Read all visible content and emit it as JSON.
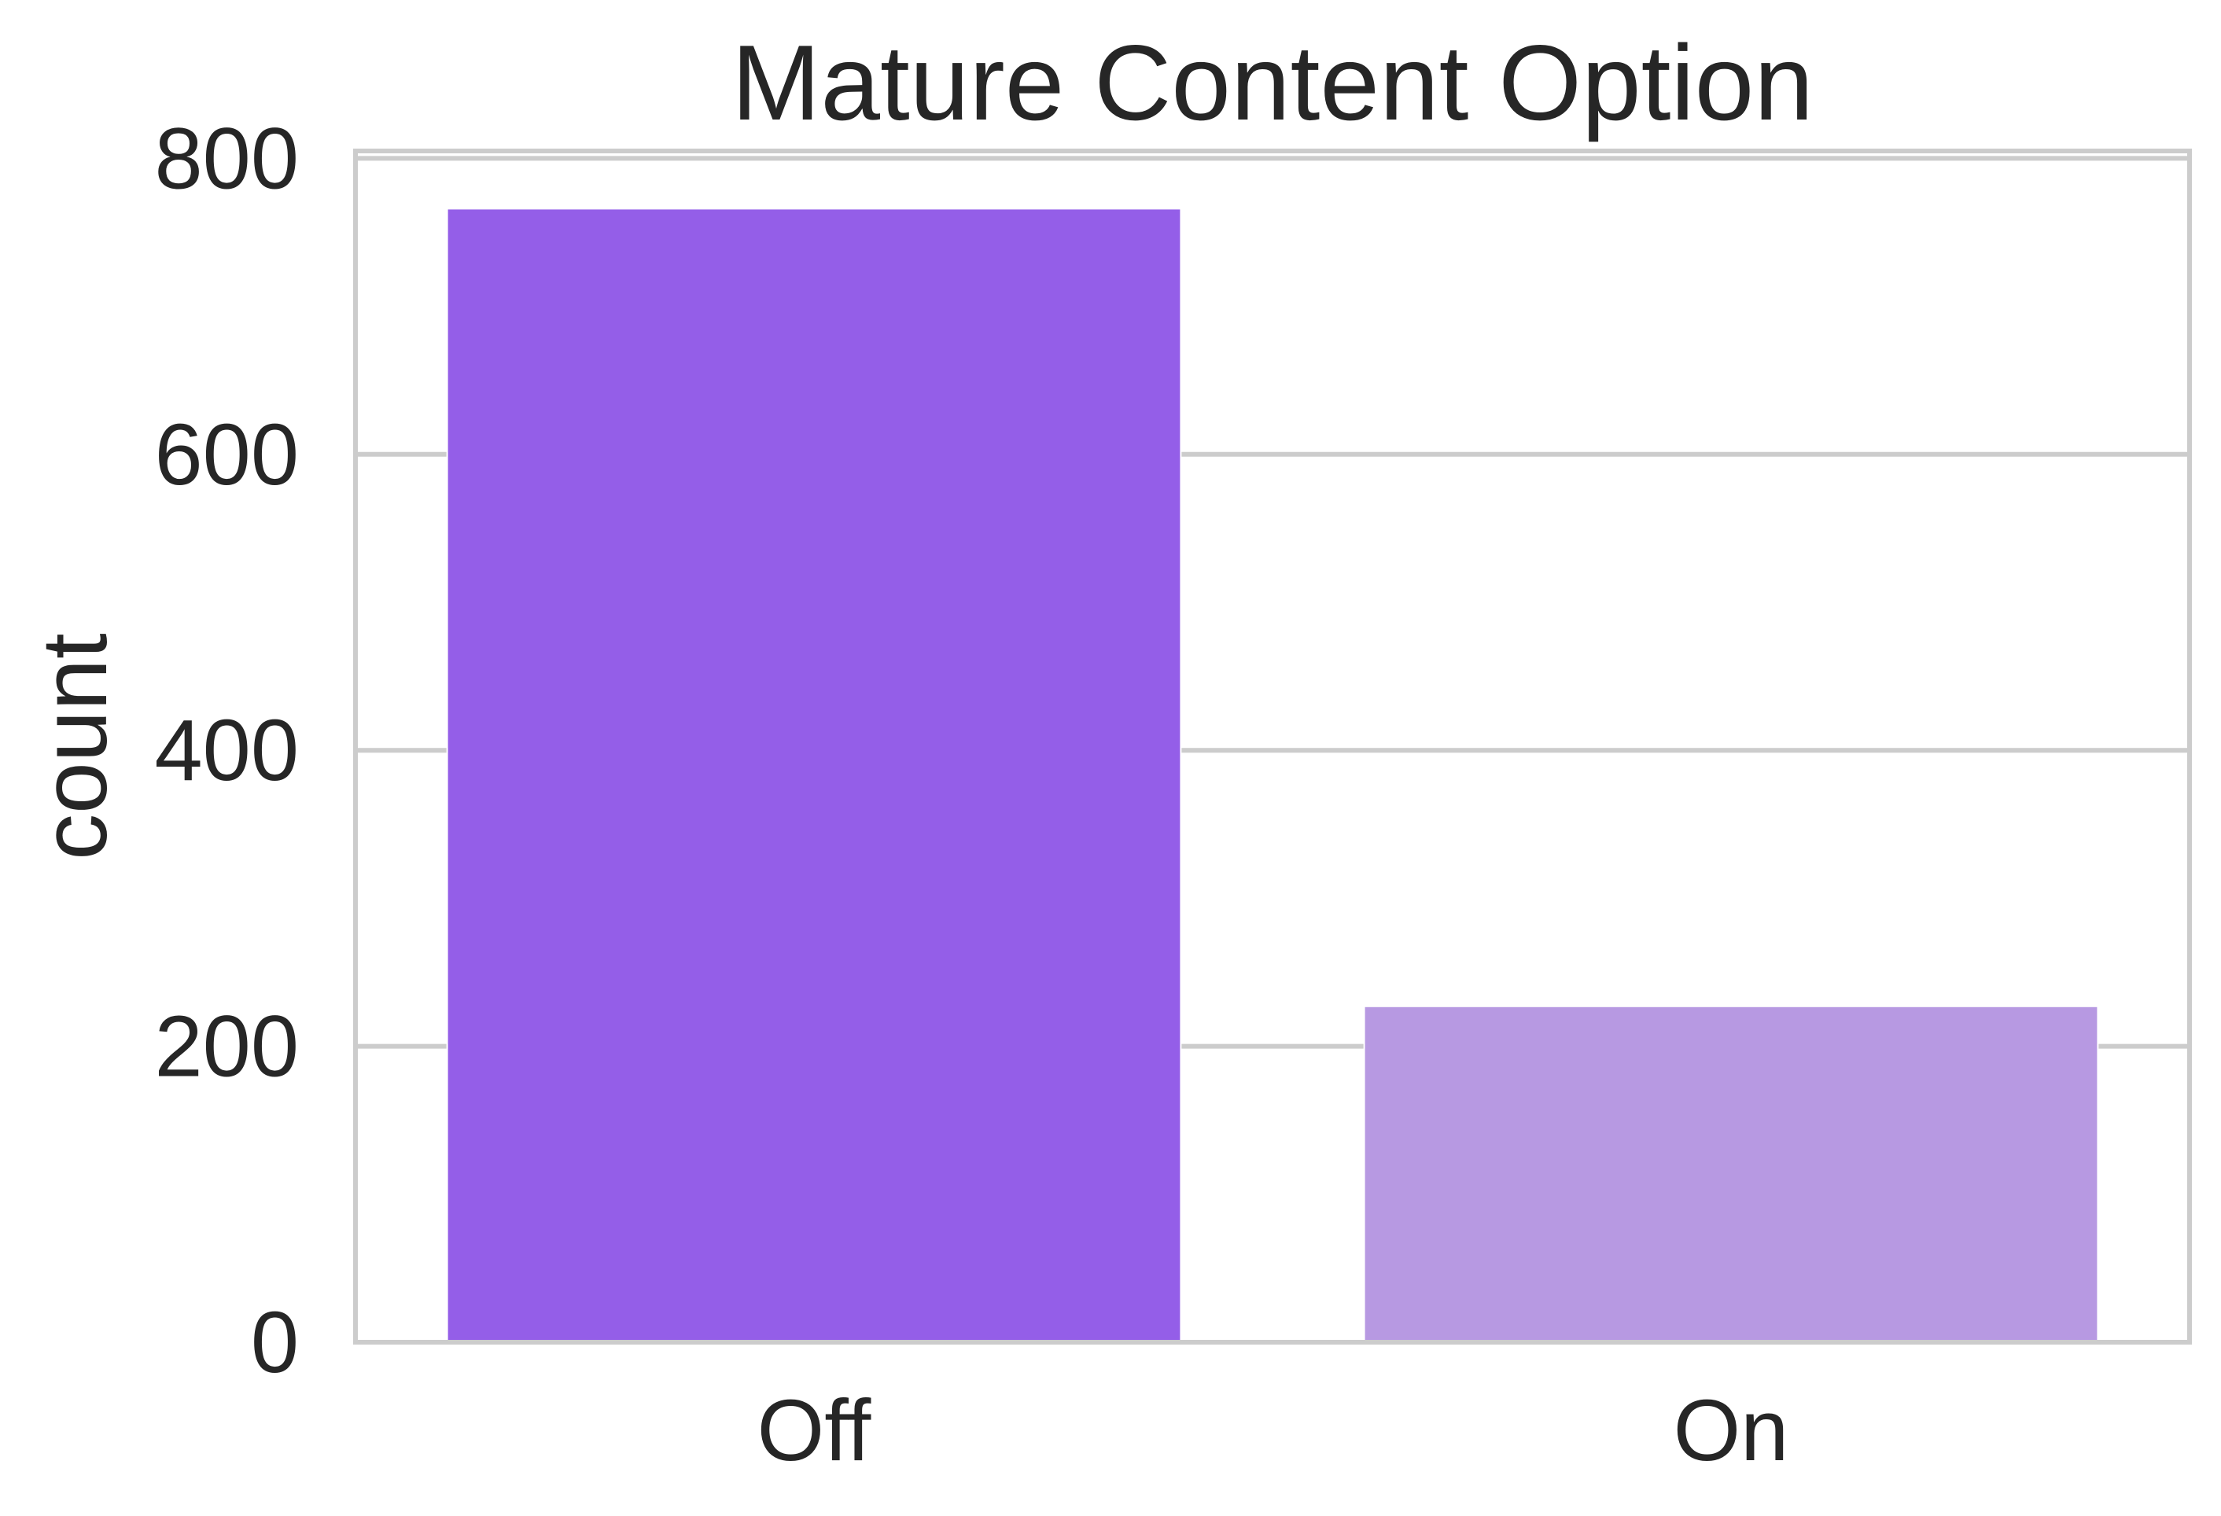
{
  "chart_data": {
    "type": "bar",
    "title": "Mature Content Option",
    "xlabel": "",
    "ylabel": "count",
    "categories": [
      "Off",
      "On"
    ],
    "values": [
      766,
      227
    ],
    "ylim": [
      0,
      805
    ],
    "yticks": [
      0,
      200,
      400,
      600,
      800
    ],
    "ytick_labels": [
      "0",
      "200",
      "400",
      "600",
      "800"
    ],
    "grid": true,
    "legend": "none",
    "colors": {
      "bars": [
        "#945ee8",
        "#b799e2"
      ],
      "grid": "#cccccc",
      "spine": "#cccccc",
      "text": "#262626",
      "background": "#ffffff"
    }
  }
}
